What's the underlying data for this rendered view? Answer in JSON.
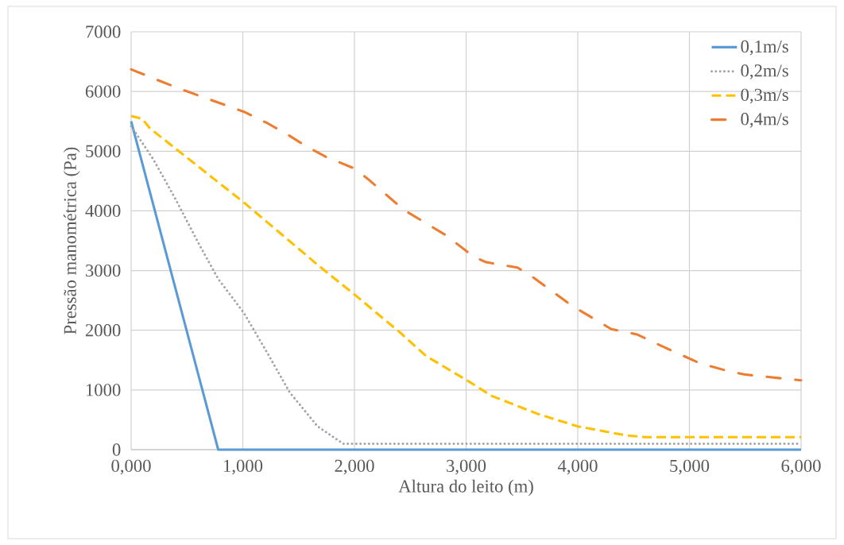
{
  "chart_data": {
    "type": "line",
    "xlabel": "Altura do leito (m)",
    "ylabel": "Pressão manométrica (Pa)",
    "xlim": [
      0,
      6
    ],
    "ylim": [
      0,
      7000
    ],
    "xticks": [
      {
        "value": 0,
        "label": "0,000"
      },
      {
        "value": 1,
        "label": "1,000"
      },
      {
        "value": 2,
        "label": "2,000"
      },
      {
        "value": 3,
        "label": "3,000"
      },
      {
        "value": 4,
        "label": "4,000"
      },
      {
        "value": 5,
        "label": "5,000"
      },
      {
        "value": 6,
        "label": "6,000"
      }
    ],
    "yticks": [
      0,
      1000,
      2000,
      3000,
      4000,
      5000,
      6000,
      7000
    ],
    "grid": true,
    "legend": "top right",
    "marker": "none",
    "series": [
      {
        "name": "0,1m/s",
        "color": "#5b9bd5",
        "line_style": "solid",
        "x": [
          0,
          0.78,
          6
        ],
        "values": [
          5500,
          0,
          0
        ]
      },
      {
        "name": "0,2m/s",
        "color": "#a5a5a5",
        "line_style": "dotted",
        "x": [
          0,
          0.2,
          0.4,
          0.6,
          0.78,
          1.01,
          1.22,
          1.42,
          1.67,
          1.9,
          6
        ],
        "values": [
          5420,
          4860,
          4190,
          3470,
          2860,
          2290,
          1620,
          960,
          390,
          100,
          100
        ]
      },
      {
        "name": "0,3m/s",
        "color": "#ffc000",
        "line_style": "dashed",
        "x": [
          0,
          0.1,
          0.17,
          0.4,
          1.01,
          1.7,
          2.0,
          2.41,
          2.64,
          3.0,
          3.23,
          3.64,
          4.0,
          4.43,
          4.6,
          6
        ],
        "values": [
          5590,
          5540,
          5380,
          5040,
          4140,
          3050,
          2600,
          1960,
          1570,
          1170,
          900,
          600,
          390,
          240,
          210,
          210
        ]
      },
      {
        "name": "0,4m/s",
        "color": "#ed7d31",
        "line_style": "dashdot",
        "x": [
          0,
          0.12,
          0.4,
          1.01,
          1.22,
          1.4,
          1.57,
          1.75,
          2.0,
          2.13,
          2.44,
          2.82,
          3.07,
          3.18,
          3.46,
          3.59,
          3.94,
          4.3,
          4.53,
          4.7,
          5.09,
          5.32,
          5.49,
          5.95,
          6
        ],
        "values": [
          6370,
          6280,
          6070,
          5660,
          5470,
          5280,
          5080,
          4900,
          4710,
          4520,
          4020,
          3590,
          3230,
          3140,
          3050,
          2900,
          2420,
          2020,
          1930,
          1780,
          1450,
          1330,
          1260,
          1170,
          1160
        ]
      }
    ]
  }
}
